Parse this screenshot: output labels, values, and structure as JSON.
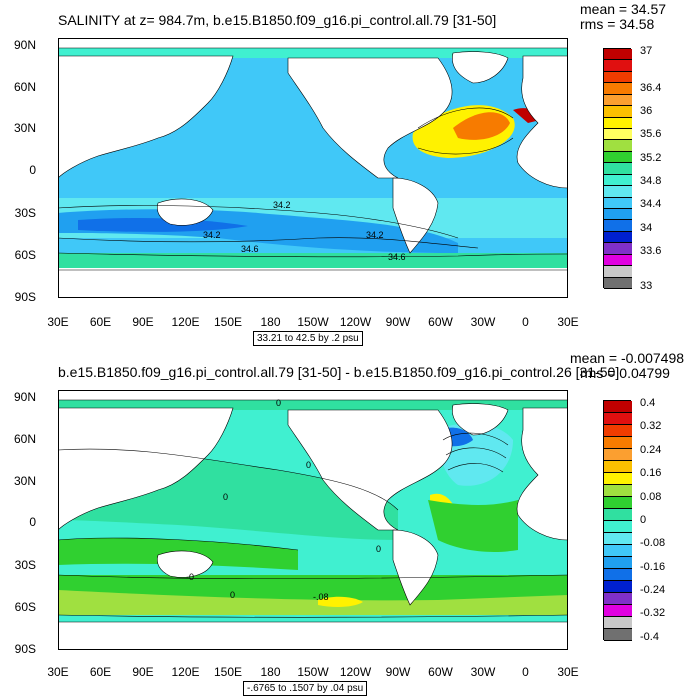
{
  "panel1": {
    "title": "SALINITY at z= 984.7m, b.e15.B1850.f09_g16.pi_control.all.79 [31-50]",
    "mean": "mean = 34.57",
    "rms": "rms = 34.58",
    "info": "33.21 to 42.5 by .2 psu",
    "lat_labels": [
      "90N",
      "60N",
      "30N",
      "0",
      "30S",
      "60S",
      "90S"
    ],
    "lon_labels": [
      "30E",
      "60E",
      "90E",
      "120E",
      "150E",
      "180",
      "150W",
      "120W",
      "90W",
      "60W",
      "30W",
      "0",
      "30E"
    ],
    "colorbar_labels": [
      "37",
      "36.4",
      "36",
      "35.6",
      "35.2",
      "34.8",
      "34.4",
      "34",
      "33.6",
      "33"
    ],
    "contour_labels": [
      "34.2",
      "34.2",
      "34.2",
      "34.6",
      "34.6"
    ],
    "colorbar_colors": [
      "#c00000",
      "#e01010",
      "#f03c00",
      "#f77b00",
      "#fb9f30",
      "#fbc000",
      "#fff200",
      "#ffff60",
      "#a0e040",
      "#30d030",
      "#30e0a0",
      "#40f0d0",
      "#60e8f0",
      "#40c8f8",
      "#20a0f0",
      "#1070e8",
      "#0020d0",
      "#8030c8",
      "#e000e0",
      "#c8c8c8",
      "#707070"
    ]
  },
  "panel2": {
    "title": "b.e15.B1850.f09_g16.pi_control.all.79 [31-50] - b.e15.B1850.f09_g16.pi_control.26 [31-50]",
    "mean": "mean = -0.007498",
    "rms": "rms = 0.04799",
    "info": "-.6765 to .1507 by .04 psu",
    "lat_labels": [
      "90N",
      "60N",
      "30N",
      "0",
      "30S",
      "60S",
      "90S"
    ],
    "lon_labels": [
      "30E",
      "60E",
      "90E",
      "120E",
      "150E",
      "180",
      "150W",
      "120W",
      "90W",
      "60W",
      "30W",
      "0",
      "30E"
    ],
    "colorbar_labels": [
      "0.4",
      "0.32",
      "0.24",
      "0.16",
      "0.08",
      "0",
      "-0.08",
      "-0.16",
      "-0.24",
      "-0.32",
      "-0.4"
    ],
    "contour_labels": [
      "0",
      "0",
      "0",
      "0",
      "-0",
      "0",
      "-.08"
    ],
    "colorbar_colors": [
      "#c00000",
      "#e01010",
      "#f03c00",
      "#f77b00",
      "#fb9f30",
      "#fbc000",
      "#fff200",
      "#a0e040",
      "#30d030",
      "#30e0a0",
      "#40f0d0",
      "#60e8f0",
      "#40c8f8",
      "#20a0f0",
      "#1070e8",
      "#0020d0",
      "#8030c8",
      "#e000e0",
      "#c8c8c8",
      "#707070"
    ]
  }
}
